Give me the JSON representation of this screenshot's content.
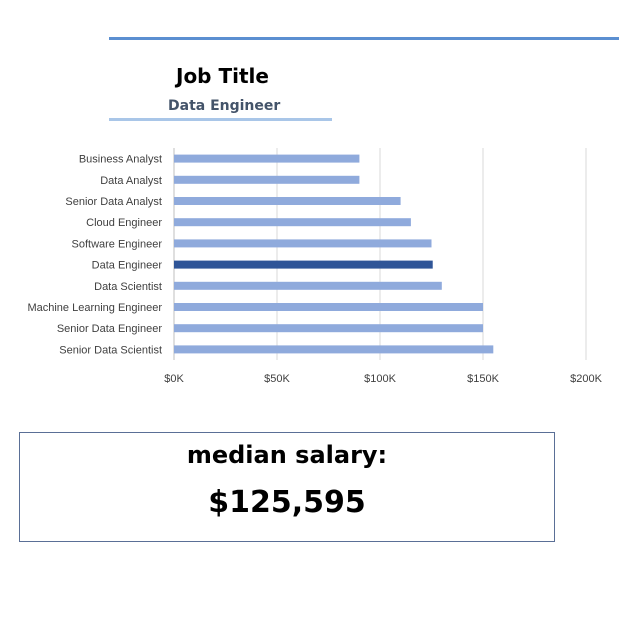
{
  "slicer": {
    "title": "Job Title",
    "selected": "Data Engineer"
  },
  "kpi": {
    "label": "median salary:",
    "value": "$125,595"
  },
  "colors": {
    "bar": "#8faadc",
    "highlight": "#2f5597",
    "grid": "#d9d9d9",
    "axis": "#bfbfbf",
    "accent_rule": "#5b8fd1",
    "slicer_rule": "#a9c6e8"
  },
  "chart_data": {
    "type": "bar",
    "orientation": "horizontal",
    "categories": [
      "Business Analyst",
      "Data Analyst",
      "Senior Data Analyst",
      "Cloud Engineer",
      "Software Engineer",
      "Data Engineer",
      "Data Scientist",
      "Machine Learning Engineer",
      "Senior Data Engineer",
      "Senior Data Scientist"
    ],
    "values": [
      90000,
      90000,
      110000,
      115000,
      125000,
      125595,
      130000,
      150000,
      150000,
      155000
    ],
    "highlight": "Data Engineer",
    "xlim": [
      0,
      200000
    ],
    "xticks": [
      0,
      50000,
      100000,
      150000,
      200000
    ],
    "xtick_labels": [
      "$0K",
      "$50K",
      "$100K",
      "$150K",
      "$200K"
    ],
    "grid": true
  }
}
